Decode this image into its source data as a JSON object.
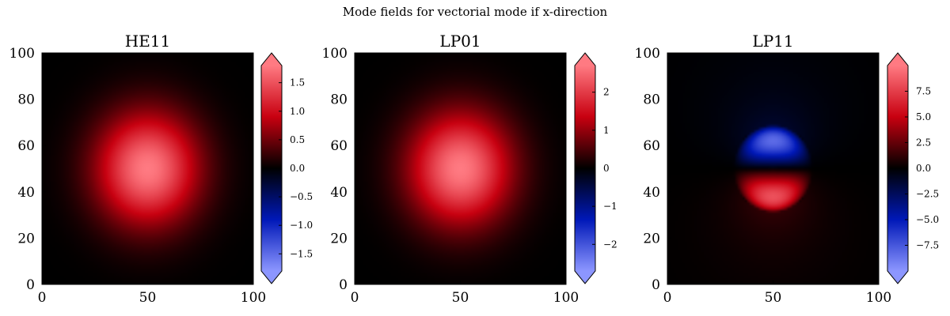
{
  "figure": {
    "title": "Mode fields for vectorial mode if x-direction"
  },
  "colormap": {
    "name": "diverging blue-black-red",
    "stops": [
      "#8c96ff",
      "#0018b8",
      "#000000",
      "#c80010",
      "#ff7a82"
    ]
  },
  "chart_data": [
    {
      "type": "heatmap",
      "title": "HE11",
      "xlim": [
        0,
        100
      ],
      "ylim": [
        0,
        100
      ],
      "xticks": [
        "0",
        "50",
        "100"
      ],
      "yticks": [
        "0",
        "20",
        "40",
        "60",
        "80",
        "100"
      ],
      "field": "gaussian",
      "center": [
        50,
        50
      ],
      "peak": 1.8,
      "colorbar": {
        "range": [
          -1.8,
          1.8
        ],
        "ticks": [
          1.5,
          1.0,
          0.5,
          0.0,
          -0.5,
          -1.0,
          -1.5
        ],
        "tick_labels": [
          "1.5",
          "1.0",
          "0.5",
          "0.0",
          "−0.5",
          "−1.0",
          "−1.5"
        ],
        "extend": "both"
      },
      "grid": false
    },
    {
      "type": "heatmap",
      "title": "LP01",
      "xlim": [
        0,
        100
      ],
      "ylim": [
        0,
        100
      ],
      "xticks": [
        "0",
        "50",
        "100"
      ],
      "yticks": [
        "0",
        "20",
        "40",
        "60",
        "80",
        "100"
      ],
      "field": "gaussian",
      "center": [
        50,
        50
      ],
      "peak": 2.7,
      "colorbar": {
        "range": [
          -2.7,
          2.7
        ],
        "ticks": [
          2,
          1,
          0,
          -1,
          -2
        ],
        "tick_labels": [
          "2",
          "1",
          "0",
          "−1",
          "−2"
        ],
        "extend": "both"
      },
      "grid": false
    },
    {
      "type": "heatmap",
      "title": "LP11",
      "xlim": [
        0,
        100
      ],
      "ylim": [
        0,
        100
      ],
      "xticks": [
        "0",
        "50",
        "100"
      ],
      "yticks": [
        "0",
        "20",
        "40",
        "60",
        "80",
        "100"
      ],
      "field": "antisymmetric",
      "center": [
        50,
        50
      ],
      "peak": 10,
      "colorbar": {
        "range": [
          -10,
          10
        ],
        "ticks": [
          7.5,
          5.0,
          2.5,
          0.0,
          -2.5,
          -5.0,
          -7.5
        ],
        "tick_labels": [
          "7.5",
          "5.0",
          "2.5",
          "0.0",
          "−2.5",
          "−5.0",
          "−7.5"
        ],
        "extend": "both"
      },
      "grid": false
    }
  ]
}
